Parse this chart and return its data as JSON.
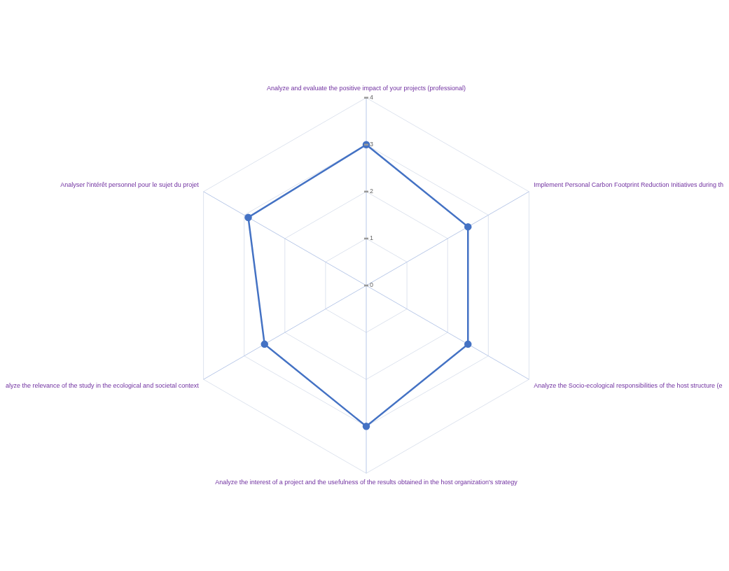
{
  "chart_data": {
    "type": "radar",
    "categories": [
      "Analyze and evaluate the positive impact of your projects (professional)",
      "Implement Personal Carbon Footprint Reduction Initiatives during th",
      "Analyze the Socio-ecological responsibilities of the host structure (e",
      "Analyze the interest of a project and the usefulness of the results obtained in the host organization's strategy",
      "alyze the relevance of the study in the ecological and societal context",
      "Analyser l'intérêt personnel pour le sujet du projet"
    ],
    "series": [
      {
        "color": "#4472c4",
        "values": [
          3,
          2.5,
          2.5,
          3,
          2.5,
          2.9
        ]
      }
    ],
    "ylim": [
      0,
      4
    ],
    "yticks": [
      0,
      1,
      2,
      3,
      4
    ],
    "grid": true,
    "legend": false,
    "marker": "circle"
  }
}
